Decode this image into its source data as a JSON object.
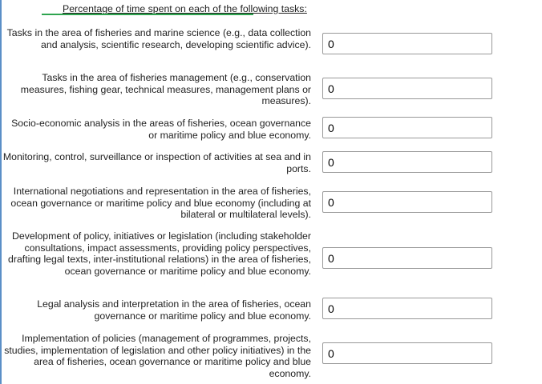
{
  "heading": "Percentage of time spent on each of the following tasks:",
  "tasks": [
    {
      "label": "Tasks in the area of fisheries and marine science (e.g., data collection and analysis, scientific research, developing scientific advice).",
      "value": "0"
    },
    {
      "label": "Tasks in the area of fisheries management (e.g., conservation measures, fishing gear, technical measures, management plans or measures).",
      "value": "0"
    },
    {
      "label": "Socio-economic analysis in the areas of fisheries, ocean governance or maritime policy and blue economy.",
      "value": "0"
    },
    {
      "label": "Monitoring, control, surveillance or inspection of activities at sea and in ports.",
      "value": "0"
    },
    {
      "label": "International negotiations and representation in the area of fisheries, ocean governance or maritime policy and blue economy (including at bilateral or multilateral levels).",
      "value": "0"
    },
    {
      "label": "Development of policy, initiatives or legislation (including stakeholder consultations, impact assessments, providing policy perspectives, drafting legal texts, inter-institutional relations) in the area of fisheries, ocean governance or maritime policy and blue economy.",
      "value": "0"
    },
    {
      "label": "Legal analysis and interpretation in the area of fisheries, ocean governance or maritime policy and blue economy.",
      "value": "0"
    },
    {
      "label": "Implementation of policies (management of programmes, projects, studies, implementation of legislation and other policy initiatives) in the area of fisheries, ocean governance or maritime policy and blue economy.",
      "value": "0"
    }
  ]
}
